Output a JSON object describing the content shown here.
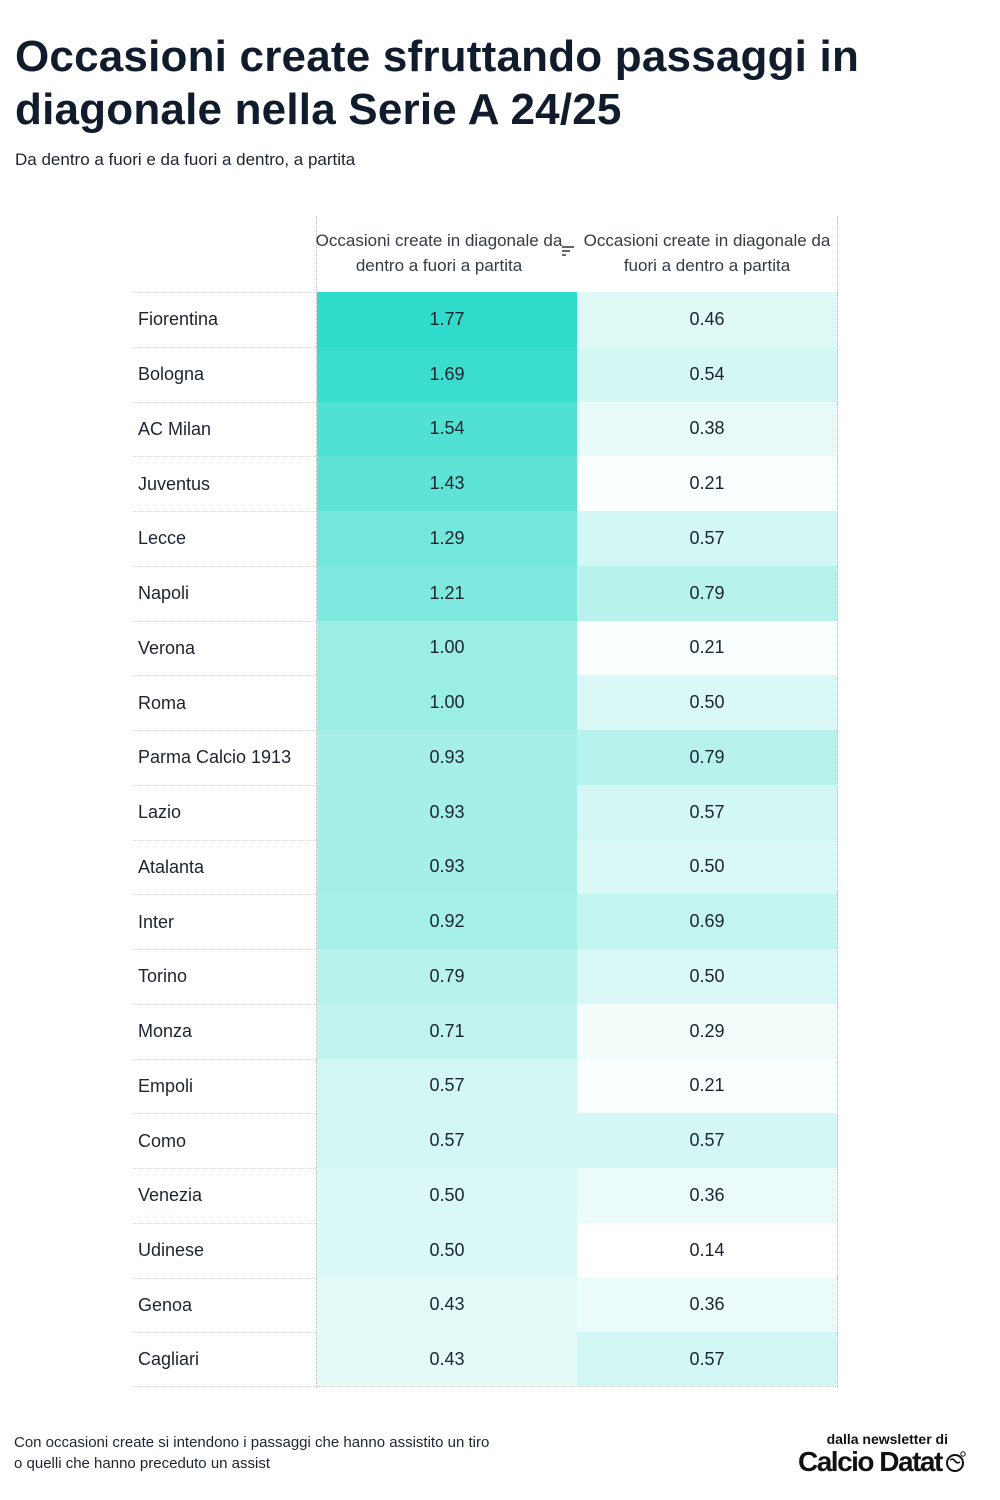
{
  "title": "Occasioni create sfruttando passaggi in diagonale nella Serie A 24/25",
  "subtitle": "Da dentro a fuori e da fuori a dentro, a partita",
  "footnote": "Con occasioni create si intendono i passaggi che hanno assistito un tiro o quelli che hanno preceduto un assist",
  "brand": {
    "top": "dalla newsletter di",
    "logo": "Calcio Datat"
  },
  "colors": {
    "heat_max": "#2fdbcb",
    "heat_min": "#ffffff"
  },
  "icons": {
    "sort": "sort-descending-icon",
    "logo_mark": "globe-icon"
  },
  "chart_data": {
    "type": "table",
    "columns": [
      "Occasioni create in diagonale da dentro a fuori a partita",
      "Occasioni create in diagonale da fuori a dentro a partita"
    ],
    "sorted_by": "Occasioni create in diagonale da dentro a fuori a partita",
    "rows": [
      {
        "team": "Fiorentina",
        "values": [
          "1.77",
          "0.46"
        ]
      },
      {
        "team": "Bologna",
        "values": [
          "1.69",
          "0.54"
        ]
      },
      {
        "team": "AC Milan",
        "values": [
          "1.54",
          "0.38"
        ]
      },
      {
        "team": "Juventus",
        "values": [
          "1.43",
          "0.21"
        ]
      },
      {
        "team": "Lecce",
        "values": [
          "1.29",
          "0.57"
        ]
      },
      {
        "team": "Napoli",
        "values": [
          "1.21",
          "0.79"
        ]
      },
      {
        "team": "Verona",
        "values": [
          "1.00",
          "0.21"
        ]
      },
      {
        "team": "Roma",
        "values": [
          "1.00",
          "0.50"
        ]
      },
      {
        "team": "Parma Calcio 1913",
        "values": [
          "0.93",
          "0.79"
        ]
      },
      {
        "team": "Lazio",
        "values": [
          "0.93",
          "0.57"
        ]
      },
      {
        "team": "Atalanta",
        "values": [
          "0.93",
          "0.50"
        ]
      },
      {
        "team": "Inter",
        "values": [
          "0.92",
          "0.69"
        ]
      },
      {
        "team": "Torino",
        "values": [
          "0.79",
          "0.50"
        ]
      },
      {
        "team": "Monza",
        "values": [
          "0.71",
          "0.29"
        ]
      },
      {
        "team": "Empoli",
        "values": [
          "0.57",
          "0.21"
        ]
      },
      {
        "team": "Como",
        "values": [
          "0.57",
          "0.57"
        ]
      },
      {
        "team": "Venezia",
        "values": [
          "0.50",
          "0.36"
        ]
      },
      {
        "team": "Udinese",
        "values": [
          "0.50",
          "0.14"
        ]
      },
      {
        "team": "Genoa",
        "values": [
          "0.43",
          "0.36"
        ]
      },
      {
        "team": "Cagliari",
        "values": [
          "0.43",
          "0.57"
        ]
      }
    ]
  }
}
